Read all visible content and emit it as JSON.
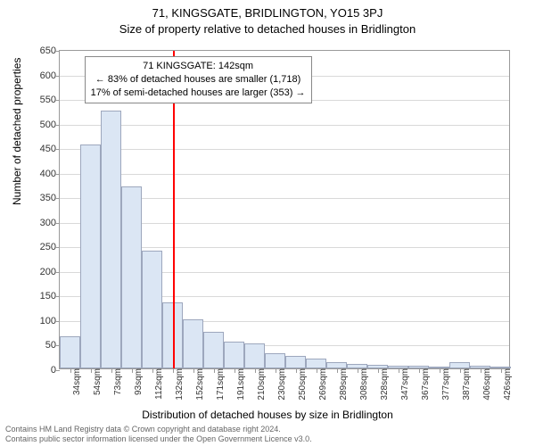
{
  "titles": {
    "line1": "71, KINGSGATE, BRIDLINGTON, YO15 3PJ",
    "line2": "Size of property relative to detached houses in Bridlington"
  },
  "axes": {
    "ylabel": "Number of detached properties",
    "xlabel": "Distribution of detached houses by size in Bridlington",
    "ylim": [
      0,
      650
    ],
    "ytick_step": 50,
    "label_fontsize": 12,
    "tick_fontsize": 11,
    "grid_color": "#d9d9d9",
    "axis_color": "#9a9a9a"
  },
  "chart": {
    "type": "bar",
    "bar_fill": "#dbe6f4",
    "bar_stroke": "#9da7bd",
    "background_color": "#ffffff",
    "categories": [
      "34sqm",
      "54sqm",
      "73sqm",
      "93sqm",
      "112sqm",
      "132sqm",
      "152sqm",
      "171sqm",
      "191sqm",
      "210sqm",
      "230sqm",
      "250sqm",
      "269sqm",
      "289sqm",
      "308sqm",
      "328sqm",
      "347sqm",
      "367sqm",
      "377sqm",
      "387sqm",
      "406sqm",
      "426sqm"
    ],
    "values": [
      65,
      455,
      525,
      370,
      240,
      135,
      100,
      75,
      55,
      50,
      30,
      25,
      20,
      12,
      10,
      8,
      6,
      5,
      4,
      12,
      5,
      4
    ],
    "reference": {
      "x_category_index": 5.5,
      "color": "#ff0000",
      "width": 2
    }
  },
  "annotation": {
    "line1": "71 KINGSGATE: 142sqm",
    "line2": "← 83% of detached houses are smaller (1,718)",
    "line3": "17% of semi-detached houses are larger (353) →",
    "border_color": "#888888",
    "background_color": "#ffffff",
    "fontsize": 11
  },
  "license": {
    "line1": "Contains HM Land Registry data © Crown copyright and database right 2024.",
    "line2": "Contains public sector information licensed under the Open Government Licence v3.0."
  }
}
